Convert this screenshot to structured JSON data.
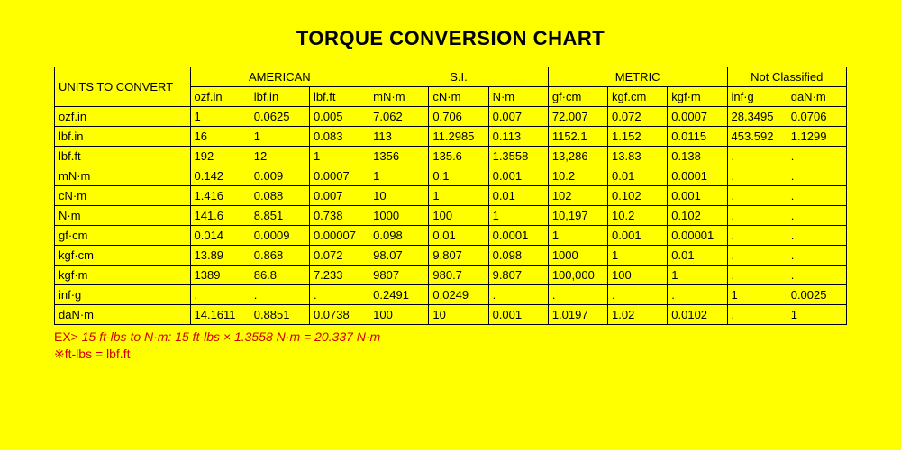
{
  "title": "TORQUE CONVERSION CHART",
  "units_label": "UNITS TO CONVERT",
  "groups": [
    "AMERICAN",
    "S.I.",
    "METRIC",
    "Not Classified"
  ],
  "group_spans": [
    3,
    3,
    3,
    2
  ],
  "columns": [
    "ozf.in",
    "lbf.in",
    "lbf.ft",
    "mN·m",
    "cN·m",
    "N·m",
    "gf·cm",
    "kgf.cm",
    "kgf·m",
    "inf·g",
    "daN·m"
  ],
  "rows": [
    {
      "label": "ozf.in",
      "cells": [
        "1",
        "0.0625",
        "0.005",
        "7.062",
        "0.706",
        "0.007",
        "72.007",
        "0.072",
        "0.0007",
        "28.3495",
        "0.0706"
      ]
    },
    {
      "label": "lbf.in",
      "cells": [
        "16",
        "1",
        "0.083",
        "113",
        "11.2985",
        "0.113",
        "1152.1",
        "1.152",
        "0.0115",
        "453.592",
        "1.1299"
      ]
    },
    {
      "label": "lbf.ft",
      "cells": [
        "192",
        "12",
        "1",
        "1356",
        "135.6",
        "1.3558",
        "13,286",
        "13.83",
        "0.138",
        ".",
        "."
      ]
    },
    {
      "label": "mN·m",
      "cells": [
        "0.142",
        "0.009",
        "0.0007",
        "1",
        "0.1",
        "0.001",
        "10.2",
        "0.01",
        "0.0001",
        ".",
        "."
      ]
    },
    {
      "label": "cN·m",
      "cells": [
        "1.416",
        "0.088",
        "0.007",
        "10",
        "1",
        "0.01",
        "102",
        "0.102",
        "0.001",
        ".",
        "."
      ]
    },
    {
      "label": "N·m",
      "cells": [
        "141.6",
        "8.851",
        "0.738",
        "1000",
        "100",
        "1",
        "10,197",
        "10.2",
        "0.102",
        ".",
        "."
      ]
    },
    {
      "label": "gf·cm",
      "cells": [
        "0.014",
        "0.0009",
        "0.00007",
        "0.098",
        "0.01",
        "0.0001",
        "1",
        "0.001",
        "0.00001",
        ".",
        "."
      ]
    },
    {
      "label": "kgf·cm",
      "cells": [
        "13.89",
        "0.868",
        "0.072",
        "98.07",
        "9.807",
        "0.098",
        "1000",
        "1",
        "0.01",
        ".",
        "."
      ]
    },
    {
      "label": "kgf·m",
      "cells": [
        "1389",
        "86.8",
        "7.233",
        "9807",
        "980.7",
        "9.807",
        "100,000",
        "100",
        "1",
        ".",
        "."
      ]
    },
    {
      "label": "inf·g",
      "cells": [
        ".",
        ".",
        ".",
        "0.2491",
        "0.0249",
        ".",
        ".",
        ".",
        ".",
        "1",
        "0.0025"
      ]
    },
    {
      "label": "daN·m",
      "cells": [
        "14.1611",
        "0.8851",
        "0.0738",
        "100",
        "10",
        "0.001",
        "1.0197",
        "1.02",
        "0.0102",
        ".",
        "1"
      ]
    }
  ],
  "footnote": {
    "line1_prefix": "EX>",
    "line1_italic": " 15 ft-lbs to N·m:    15 ft-lbs × 1.3558 N·m = 20.337 N·m",
    "line2": "※ft-lbs = lbf.ft"
  },
  "colors": {
    "background": "#ffff00",
    "border": "#000000",
    "text": "#000000",
    "footnote": "#d10000"
  }
}
